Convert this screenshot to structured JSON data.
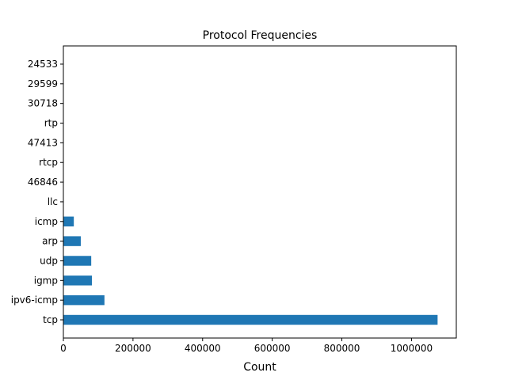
{
  "chart_data": {
    "type": "bar",
    "orientation": "horizontal",
    "title": "Protocol Frequencies",
    "xlabel": "Count",
    "ylabel": "",
    "categories": [
      "tcp",
      "ipv6-icmp",
      "igmp",
      "udp",
      "arp",
      "icmp",
      "llc",
      "46846",
      "rtcp",
      "47413",
      "rtp",
      "30718",
      "29599",
      "24533"
    ],
    "values": [
      1075000,
      118000,
      82000,
      80000,
      50000,
      30000,
      500,
      60,
      50,
      40,
      30,
      20,
      15,
      10
    ],
    "xlim": [
      0,
      1128750
    ],
    "xticks": [
      0,
      200000,
      400000,
      600000,
      800000,
      1000000
    ],
    "xtick_labels": [
      "0",
      "200000",
      "400000",
      "600000",
      "800000",
      "1000000"
    ],
    "grid": false,
    "legend": "none",
    "bar_color": "#1f77b4"
  }
}
